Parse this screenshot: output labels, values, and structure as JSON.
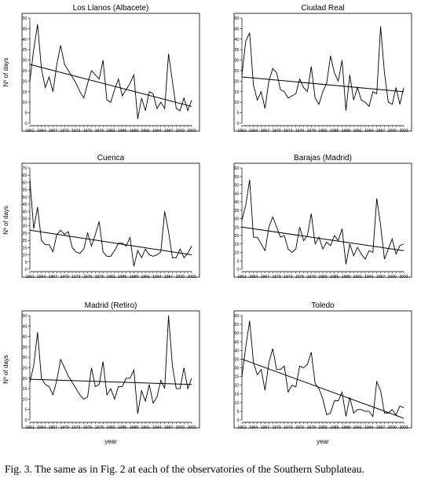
{
  "figure": {
    "caption": "Fig. 3. The same as in Fig. 2 at each of the observatories of the Southern Subplateau."
  },
  "chart_data": [
    {
      "type": "line",
      "title": "Los Llanos (Albacete)",
      "xlabel": "",
      "ylabel": "Nº of days",
      "ylim": [
        0,
        50
      ],
      "yticks": [
        "0",
        "5",
        "10",
        "15",
        "20",
        "25",
        "30",
        "35",
        "40",
        "45",
        "50"
      ],
      "xticks": [
        "1961",
        "1964",
        "1967",
        "1970",
        "1973",
        "1976",
        "1979",
        "1982",
        "1985",
        "1988",
        "1991",
        "1994",
        "1997",
        "2000",
        "2003"
      ],
      "x": [
        1961,
        1962,
        1963,
        1964,
        1965,
        1966,
        1967,
        1968,
        1969,
        1970,
        1971,
        1972,
        1973,
        1974,
        1975,
        1976,
        1977,
        1978,
        1979,
        1980,
        1981,
        1982,
        1983,
        1984,
        1985,
        1986,
        1987,
        1988,
        1989,
        1990,
        1991,
        1992,
        1993,
        1994,
        1995,
        1996,
        1997,
        1998,
        1999,
        2000,
        2001,
        2002,
        2003
      ],
      "values": [
        20,
        35,
        47,
        26,
        17,
        22,
        15,
        28,
        37,
        28,
        25,
        22,
        19,
        15,
        12,
        19,
        25,
        23,
        21,
        30,
        11,
        10,
        16,
        21,
        13,
        16,
        19,
        23,
        2,
        12,
        6,
        15,
        14,
        7,
        10,
        7,
        33,
        20,
        7,
        6,
        12,
        6,
        11
      ],
      "trend": {
        "x": [
          1961,
          2003
        ],
        "y": [
          28,
          8
        ]
      }
    },
    {
      "type": "line",
      "title": "Ciudad Real",
      "xlabel": "",
      "ylabel": "",
      "ylim": [
        0,
        50
      ],
      "yticks": [
        "0",
        "5",
        "10",
        "15",
        "20",
        "25",
        "30",
        "35",
        "40",
        "45",
        "50"
      ],
      "xticks": [
        "1961",
        "1964",
        "1967",
        "1970",
        "1973",
        "1976",
        "1979",
        "1982",
        "1985",
        "1988",
        "1991",
        "1994",
        "1997",
        "2000",
        "2003"
      ],
      "x": [
        1961,
        1962,
        1963,
        1964,
        1965,
        1966,
        1967,
        1968,
        1969,
        1970,
        1971,
        1972,
        1973,
        1974,
        1975,
        1976,
        1977,
        1978,
        1979,
        1980,
        1981,
        1982,
        1983,
        1984,
        1985,
        1986,
        1987,
        1988,
        1989,
        1990,
        1991,
        1992,
        1993,
        1994,
        1995,
        1996,
        1997,
        1998,
        1999,
        2000,
        2001,
        2002,
        2003
      ],
      "values": [
        23,
        39,
        43,
        18,
        11,
        15,
        7,
        20,
        26,
        24,
        16,
        15,
        12,
        13,
        14,
        21,
        17,
        15,
        27,
        12,
        9,
        15,
        19,
        32,
        24,
        20,
        30,
        6,
        23,
        11,
        17,
        11,
        10,
        8,
        15,
        14,
        46,
        24,
        10,
        9,
        17,
        9,
        17
      ],
      "trend": {
        "x": [
          1961,
          2003
        ],
        "y": [
          22,
          15
        ]
      }
    },
    {
      "type": "line",
      "title": "Cuenca",
      "xlabel": "",
      "ylabel": "Nº of days",
      "ylim": [
        0,
        70
      ],
      "yticks": [
        "0",
        "5",
        "10",
        "15",
        "20",
        "25",
        "30",
        "35",
        "40",
        "45",
        "50",
        "55",
        "60",
        "65",
        "70"
      ],
      "xticks": [
        "1961",
        "1964",
        "1967",
        "1970",
        "1973",
        "1976",
        "1979",
        "1982",
        "1985",
        "1988",
        "1991",
        "1994",
        "1997",
        "2000",
        "2003"
      ],
      "x": [
        1961,
        1962,
        1963,
        1964,
        1965,
        1966,
        1967,
        1968,
        1969,
        1970,
        1971,
        1972,
        1973,
        1974,
        1975,
        1976,
        1977,
        1978,
        1979,
        1980,
        1981,
        1982,
        1983,
        1984,
        1985,
        1986,
        1987,
        1988,
        1989,
        1990,
        1991,
        1992,
        1993,
        1994,
        1995,
        1996,
        1997,
        1998,
        1999,
        2000,
        2001,
        2002,
        2003
      ],
      "values": [
        62,
        28,
        43,
        20,
        17,
        17,
        12,
        24,
        27,
        24,
        26,
        15,
        12,
        11,
        14,
        25,
        16,
        24,
        33,
        12,
        9,
        9,
        13,
        18,
        18,
        16,
        22,
        2,
        13,
        8,
        14,
        10,
        9,
        10,
        12,
        40,
        26,
        8,
        8,
        14,
        8,
        11,
        16
      ],
      "trend": {
        "x": [
          1961,
          2003
        ],
        "y": [
          27,
          10
        ]
      }
    },
    {
      "type": "line",
      "title": "Barajas (Madrid)",
      "xlabel": "",
      "ylabel": "",
      "ylim": [
        0,
        60
      ],
      "yticks": [
        "0",
        "5",
        "10",
        "15",
        "20",
        "25",
        "30",
        "35",
        "40",
        "45",
        "50",
        "55",
        "60"
      ],
      "xticks": [
        "1961",
        "1964",
        "1967",
        "1970",
        "1973",
        "1976",
        "1979",
        "1982",
        "1985",
        "1988",
        "1991",
        "1994",
        "1997",
        "2000",
        "2003"
      ],
      "x": [
        1961,
        1962,
        1963,
        1964,
        1965,
        1966,
        1967,
        1968,
        1969,
        1970,
        1971,
        1972,
        1973,
        1974,
        1975,
        1976,
        1977,
        1978,
        1979,
        1980,
        1981,
        1982,
        1983,
        1984,
        1985,
        1986,
        1987,
        1988,
        1989,
        1990,
        1991,
        1992,
        1993,
        1994,
        1995,
        1996,
        1997,
        1998,
        1999,
        2000,
        2001,
        2002,
        2003
      ],
      "values": [
        29,
        38,
        53,
        19,
        19,
        15,
        11,
        25,
        31,
        25,
        19,
        20,
        12,
        10,
        12,
        25,
        17,
        20,
        33,
        15,
        19,
        12,
        16,
        14,
        20,
        17,
        24,
        3,
        15,
        8,
        13,
        9,
        6,
        11,
        10,
        42,
        26,
        6,
        12,
        18,
        9,
        14,
        15
      ],
      "trend": {
        "x": [
          1961,
          2003
        ],
        "y": [
          25,
          11
        ]
      }
    },
    {
      "type": "line",
      "title": "Madrid (Retiro)",
      "xlabel": "year",
      "ylabel": "Nº of days",
      "ylim": [
        0,
        50
      ],
      "yticks": [
        "0",
        "5",
        "10",
        "15",
        "20",
        "25",
        "30",
        "35",
        "40",
        "45",
        "50"
      ],
      "xticks": [
        "1961",
        "1964",
        "1967",
        "1970",
        "1973",
        "1976",
        "1979",
        "1982",
        "1985",
        "1988",
        "1991",
        "1994",
        "1997",
        "2000",
        "2003"
      ],
      "x": [
        1961,
        1962,
        1963,
        1964,
        1965,
        1966,
        1967,
        1968,
        1969,
        1970,
        1971,
        1972,
        1973,
        1974,
        1975,
        1976,
        1977,
        1978,
        1979,
        1980,
        1981,
        1982,
        1983,
        1984,
        1985,
        1986,
        1987,
        1988,
        1989,
        1990,
        1991,
        1992,
        1993,
        1994,
        1995,
        1996,
        1997,
        1998,
        1999,
        2000,
        2001,
        2002,
        2003
      ],
      "values": [
        18,
        26,
        42,
        20,
        17,
        16,
        12,
        19,
        29,
        25,
        21,
        18,
        15,
        12,
        10,
        11,
        25,
        16,
        17,
        28,
        12,
        15,
        10,
        16,
        16,
        20,
        20,
        24,
        3,
        14,
        9,
        17,
        8,
        11,
        19,
        15,
        50,
        26,
        15,
        15,
        25,
        15,
        20
      ],
      "trend": {
        "x": [
          1961,
          2003
        ],
        "y": [
          19.5,
          17
        ]
      }
    },
    {
      "type": "line",
      "title": "Toledo",
      "xlabel": "year",
      "ylabel": "",
      "ylim": [
        0,
        60
      ],
      "yticks": [
        "0",
        "5",
        "10",
        "15",
        "20",
        "25",
        "30",
        "35",
        "40",
        "45",
        "50",
        "55",
        "60"
      ],
      "xticks": [
        "1961",
        "1964",
        "1967",
        "1970",
        "1973",
        "1976",
        "1979",
        "1982",
        "1985",
        "1988",
        "1991",
        "1994",
        "1997",
        "2000",
        "2003"
      ],
      "x": [
        1961,
        1962,
        1963,
        1964,
        1965,
        1966,
        1967,
        1968,
        1969,
        1970,
        1971,
        1972,
        1973,
        1974,
        1975,
        1976,
        1977,
        1978,
        1979,
        1980,
        1981,
        1982,
        1983,
        1984,
        1985,
        1986,
        1987,
        1988,
        1989,
        1990,
        1991,
        1992,
        1993,
        1994,
        1995,
        1996,
        1997,
        1998,
        1999,
        2000,
        2001,
        2002,
        2003
      ],
      "values": [
        25,
        42,
        57,
        33,
        26,
        29,
        17,
        33,
        41,
        29,
        29,
        31,
        16,
        20,
        19,
        31,
        30,
        32,
        39,
        21,
        18,
        12,
        3,
        4,
        11,
        11,
        16,
        2,
        13,
        4,
        6,
        6,
        5,
        5,
        2,
        22,
        17,
        4,
        4,
        6,
        3,
        8,
        7
      ],
      "trend": {
        "x": [
          1961,
          2003
        ],
        "y": [
          35,
          1
        ]
      }
    }
  ]
}
